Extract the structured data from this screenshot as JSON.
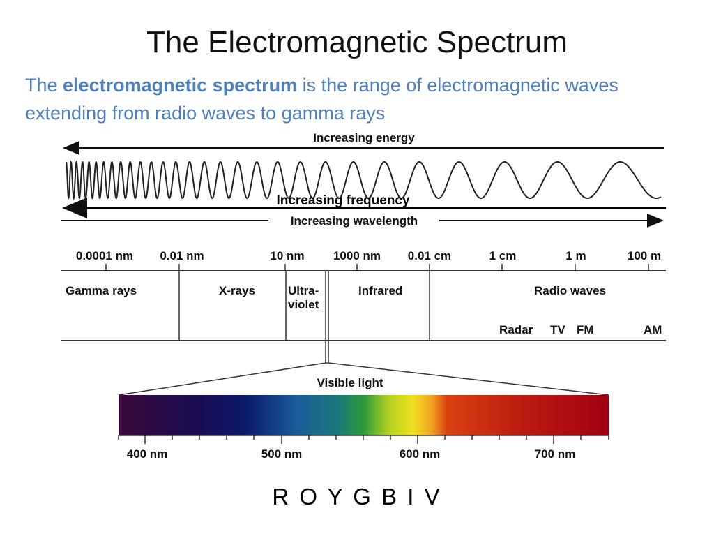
{
  "title": "The Electromagnetic Spectrum",
  "intro": {
    "part1": "The ",
    "term": "electromagnetic spectrum",
    "part2": " is the range of electromagnetic waves extending from radio waves to gamma rays"
  },
  "arrows": {
    "energy": "Increasing energy",
    "frequency": "Increasing frequency",
    "wavelength": "Increasing wavelength"
  },
  "wavelength_scale": [
    "0.0001 nm",
    "0.01 nm",
    "10 nm",
    "1000 nm",
    "0.01 cm",
    "1 cm",
    "1 m",
    "100 m"
  ],
  "regions": {
    "gamma": "Gamma rays",
    "xrays": "X-rays",
    "uv_line1": "Ultra-",
    "uv_line2": "violet",
    "infrared": "Infrared",
    "radio": "Radio waves"
  },
  "radio_bands": [
    "Radar",
    "TV",
    "FM",
    "AM"
  ],
  "visible": {
    "label": "Visible light",
    "ticks": [
      "400 nm",
      "500 nm",
      "600 nm",
      "700 nm"
    ]
  },
  "mnemonic": "R O Y G B I V",
  "colors": {
    "subtitle": "#4f81bd",
    "violet": "#3a0a3a",
    "blue": "#0a1a6a",
    "cyan": "#1a6a9a",
    "green": "#2a8a3a",
    "yellow": "#f0e020",
    "orange": "#e07010",
    "red": "#a00010"
  }
}
